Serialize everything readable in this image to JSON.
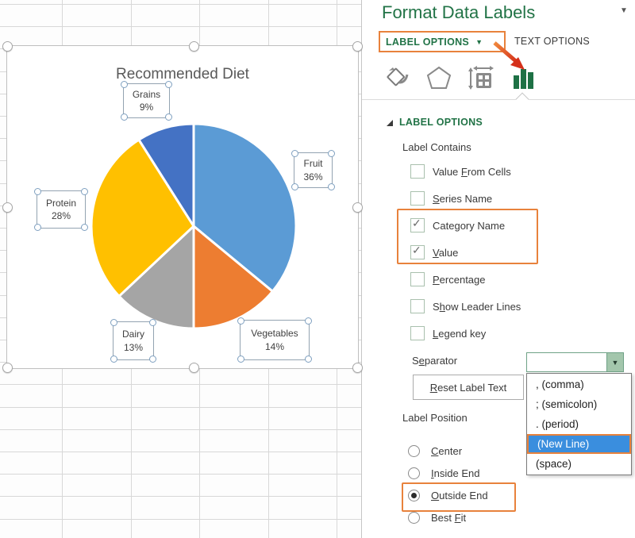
{
  "colors": {
    "pane_accent_green": "#217346",
    "annotation_orange": "#e8823c",
    "annotation_arrow_red": "#d5301a",
    "highlight_blue": "#3a8ede",
    "grid_line": "#d8d8d8",
    "chart_title_gray": "#595959"
  },
  "chart": {
    "title": "Recommended Diet",
    "labels": [
      {
        "name": "Grains",
        "value": "9%"
      },
      {
        "name": "Fruit",
        "value": "36%"
      },
      {
        "name": "Protein",
        "value": "28%"
      },
      {
        "name": "Dairy",
        "value": "13%"
      },
      {
        "name": "Vegetables",
        "value": "14%"
      }
    ]
  },
  "chart_data": {
    "type": "pie",
    "title": "Recommended Diet",
    "categories": [
      "Fruit",
      "Vegetables",
      "Dairy",
      "Protein",
      "Grains"
    ],
    "values": [
      36,
      14,
      13,
      28,
      9
    ],
    "unit": "percent",
    "slice_colors": [
      "#5B9BD5",
      "#ED7D31",
      "#A5A5A5",
      "#FFC000",
      "#4472C4"
    ],
    "start_angle_deg": 0,
    "direction": "clockwise",
    "data_labels": "category name + value, outside end",
    "legend": "none"
  },
  "panel": {
    "title": "Format Data Labels",
    "menu_chevron": "▼",
    "tabs": [
      {
        "label": "LABEL OPTIONS",
        "selected": true,
        "chevron": "▼"
      },
      {
        "label": "TEXT OPTIONS",
        "selected": false
      }
    ],
    "icon_tabs": [
      "fill-line-icon",
      "effects-icon",
      "size-properties-icon",
      "chart-columns-icon"
    ],
    "selected_icon_tab": "chart-columns-icon",
    "section_title": "LABEL OPTIONS",
    "label_contains": {
      "title": "Label Contains",
      "items": [
        {
          "label": "Value From Cells",
          "u": 6,
          "checked": false
        },
        {
          "label": "Series Name",
          "u": 0,
          "checked": false
        },
        {
          "label": "Category Name",
          "u": 4,
          "checked": true
        },
        {
          "label": "Value",
          "u": 0,
          "checked": true
        },
        {
          "label": "Percentage",
          "u": 0,
          "checked": false
        },
        {
          "label": "Show Leader Lines",
          "u": 1,
          "checked": false
        },
        {
          "label": "Legend key",
          "u": 0,
          "checked": false
        }
      ],
      "check_glyph": "✓"
    },
    "separator": {
      "label": {
        "label": "Separator",
        "u": 1
      },
      "value": "",
      "dropdown_open": true,
      "options": [
        {
          "label": ", (comma)",
          "highlighted": false
        },
        {
          "label": "; (semicolon)",
          "highlighted": false
        },
        {
          "label": ". (period)",
          "highlighted": false
        },
        {
          "label": "(New Line)",
          "highlighted": true
        },
        {
          "label": "(space)",
          "highlighted": false
        }
      ],
      "dropdown_chevron": "▼"
    },
    "reset_button": {
      "label": "Reset Label Text",
      "u": 0
    },
    "label_position": {
      "title": "Label Position",
      "items": [
        {
          "label": "Center",
          "u": 0,
          "selected": false
        },
        {
          "label": "Inside End",
          "u": 0,
          "selected": false
        },
        {
          "label": "Outside End",
          "u": 0,
          "selected": true
        },
        {
          "label": "Best Fit",
          "u": 5,
          "selected": false
        }
      ]
    }
  }
}
